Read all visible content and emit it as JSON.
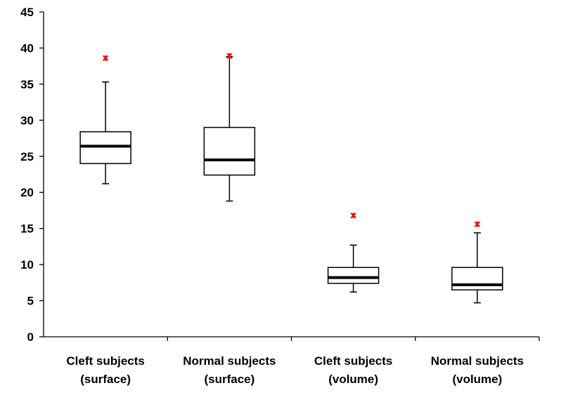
{
  "chart_data": {
    "type": "box",
    "title": "",
    "xlabel": "",
    "ylabel": "",
    "ylim": [
      0,
      45
    ],
    "yticks": [
      0,
      5,
      10,
      15,
      20,
      25,
      30,
      35,
      40,
      45
    ],
    "grid": false,
    "categories": [
      [
        "Cleft subjects",
        "(surface)"
      ],
      [
        "Normal subjects",
        "(surface)"
      ],
      [
        "Cleft subjects",
        "(volume)"
      ],
      [
        "Normal subjects",
        "(volume)"
      ]
    ],
    "boxes": [
      {
        "whisker_low": 21.2,
        "q1": 24.0,
        "median": 26.4,
        "q3": 28.4,
        "whisker_high": 35.3,
        "outliers": [
          38.6
        ]
      },
      {
        "whisker_low": 18.8,
        "q1": 22.4,
        "median": 24.5,
        "q3": 29.0,
        "whisker_high": 38.8,
        "outliers": [
          38.9
        ]
      },
      {
        "whisker_low": 6.2,
        "q1": 7.4,
        "median": 8.2,
        "q3": 9.6,
        "whisker_high": 12.7,
        "outliers": [
          16.8
        ]
      },
      {
        "whisker_low": 4.7,
        "q1": 6.5,
        "median": 7.2,
        "q3": 9.6,
        "whisker_high": 14.4,
        "outliers": [
          15.6
        ]
      }
    ],
    "colors": {
      "box": "#000000",
      "outlier": "#ff0000"
    }
  }
}
